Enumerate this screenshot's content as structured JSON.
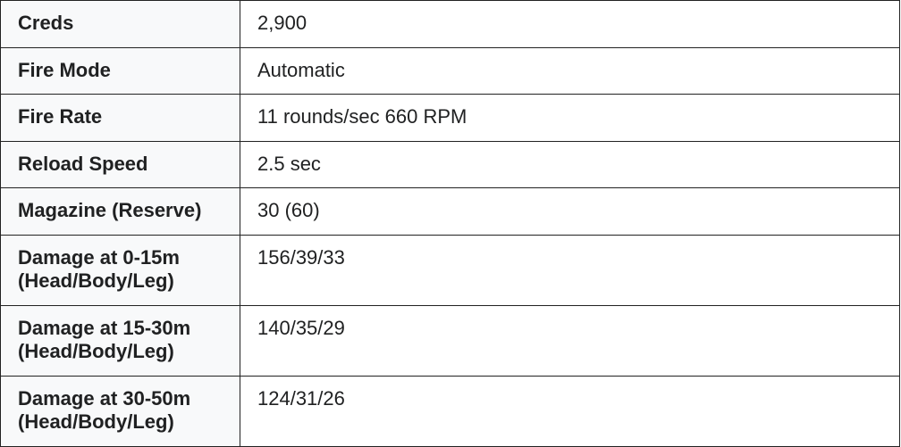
{
  "rows": [
    {
      "label": "Creds",
      "value": "2,900"
    },
    {
      "label": "Fire Mode",
      "value": "Automatic"
    },
    {
      "label": "Fire Rate",
      "value": "11 rounds/sec 660 RPM"
    },
    {
      "label": "Reload Speed",
      "value": "2.5 sec"
    },
    {
      "label": "Magazine (Reserve)",
      "value": "30 (60)"
    },
    {
      "label": "Damage at 0-15m",
      "label2": "(Head/Body/Leg)",
      "value": "156/39/33"
    },
    {
      "label": "Damage at 15-30m",
      "label2": "(Head/Body/Leg)",
      "value": "140/35/29"
    },
    {
      "label": "Damage at 30-50m",
      "label2": "(Head/Body/Leg)",
      "value": "124/31/26"
    }
  ]
}
